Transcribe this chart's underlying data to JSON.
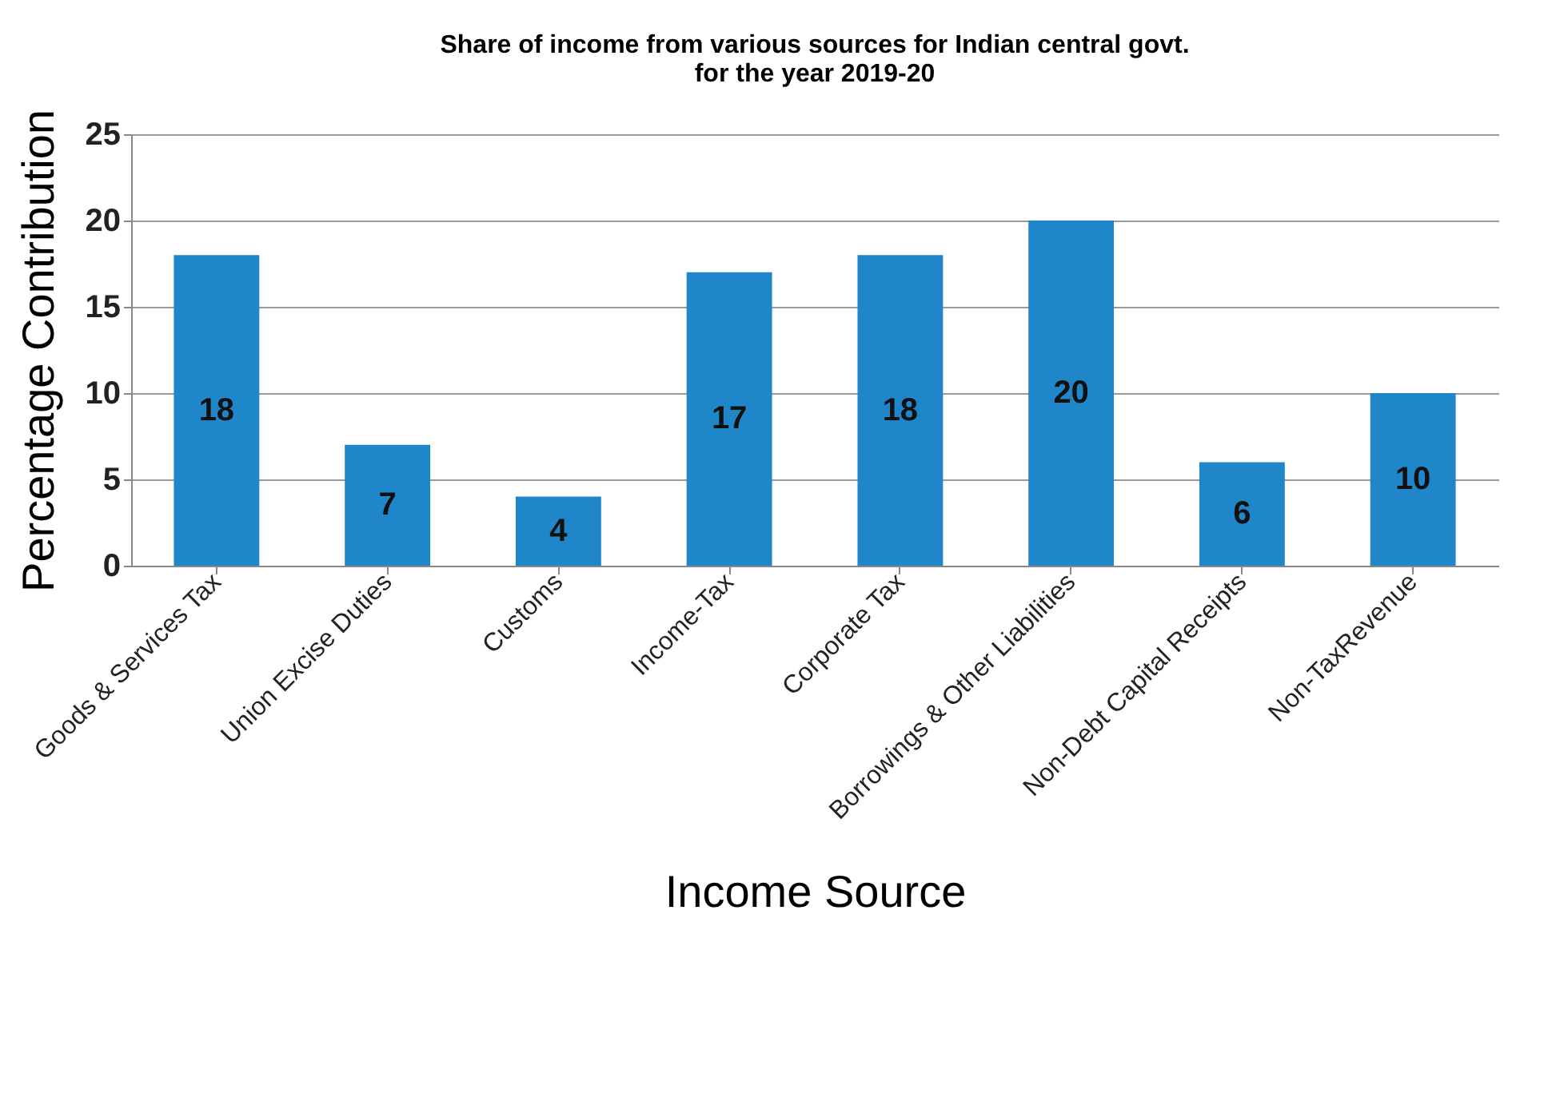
{
  "chart_data": {
    "type": "bar",
    "title": "Share of income from various sources for Indian central govt.\nfor the year 2019-20",
    "xlabel": "Income Source",
    "ylabel": "Percentage Contribution",
    "categories": [
      "Goods & Services Tax",
      "Union Excise Duties",
      "Customs",
      "Income-Tax",
      "Corporate Tax",
      "Borrowings & Other Liabilities",
      "Non-Debt Capital Receipts",
      "Non-TaxRevenue"
    ],
    "values": [
      18,
      7,
      4,
      17,
      18,
      20,
      6,
      10
    ],
    "color": "#1f87c9",
    "ylim": [
      0,
      25
    ],
    "yticks": [
      0,
      5,
      10,
      15,
      20,
      25
    ],
    "grid": "y",
    "data_labels": true
  }
}
